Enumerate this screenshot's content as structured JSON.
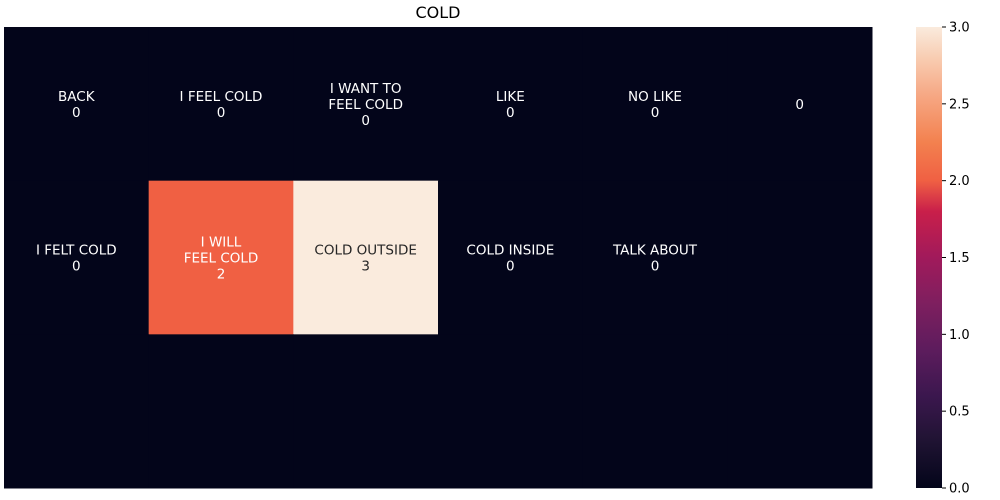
{
  "chart_data": {
    "type": "heatmap",
    "title": "COLD",
    "xlabel": "",
    "ylabel": "",
    "rows": 3,
    "cols": 6,
    "cells": [
      [
        {
          "label": "BACK",
          "value": 0
        },
        {
          "label": "I FEEL COLD",
          "value": 0
        },
        {
          "label": "I WANT TO\nFEEL COLD",
          "value": 0
        },
        {
          "label": "LIKE",
          "value": 0
        },
        {
          "label": "NO LIKE",
          "value": 0
        },
        {
          "label": "",
          "value": 0
        }
      ],
      [
        {
          "label": "I FELT COLD",
          "value": 0
        },
        {
          "label": "I WILL\nFEEL COLD",
          "value": 2
        },
        {
          "label": "COLD OUTSIDE",
          "value": 3
        },
        {
          "label": "COLD INSIDE",
          "value": 0
        },
        {
          "label": "TALK ABOUT",
          "value": 0
        },
        {
          "label": null,
          "value": 0
        }
      ],
      [
        {
          "label": null,
          "value": 0
        },
        {
          "label": null,
          "value": 0
        },
        {
          "label": null,
          "value": 0
        },
        {
          "label": null,
          "value": 0
        },
        {
          "label": null,
          "value": 0
        },
        {
          "label": null,
          "value": 0
        }
      ]
    ],
    "colorbar": {
      "min": 0.0,
      "max": 3.0,
      "ticks": [
        "0.0",
        "0.5",
        "1.0",
        "1.5",
        "2.0",
        "2.5",
        "3.0"
      ],
      "tick_values": [
        0,
        0.5,
        1.0,
        1.5,
        2.0,
        2.5,
        3.0
      ]
    },
    "colormap": "rocket",
    "colors": {
      "low": "#03051a",
      "mid_2": "#f06043",
      "high": "#faebdd",
      "annotation_dark_bg": "#ffffff",
      "annotation_light_bg": "#262626"
    }
  }
}
